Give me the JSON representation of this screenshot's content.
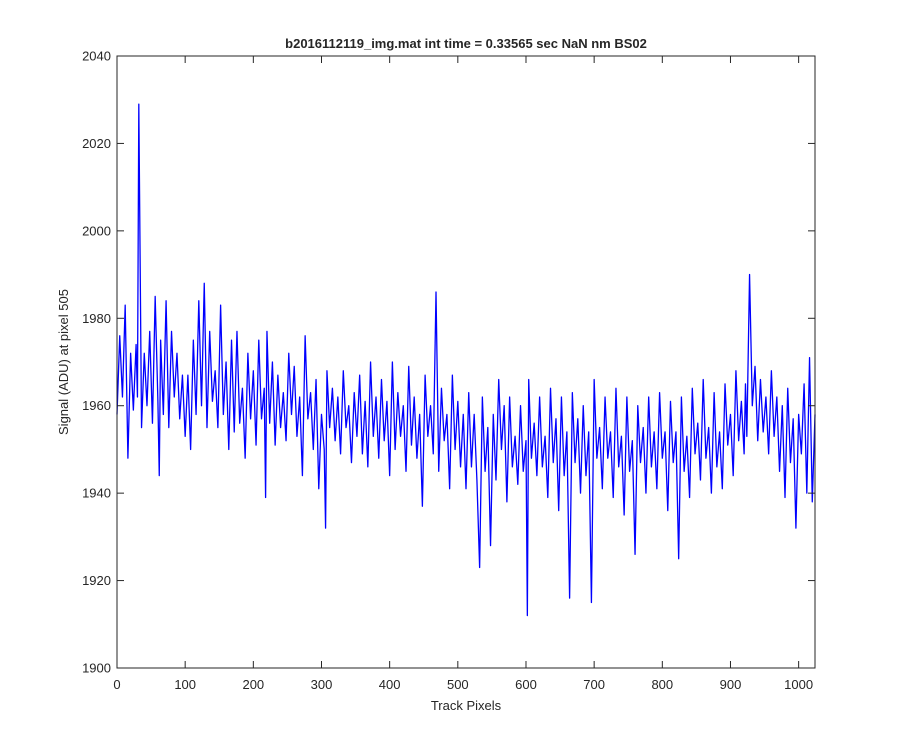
{
  "chart_data": {
    "type": "line",
    "title": "b2016112119_img.mat int time = 0.33565 sec  NaN nm BS02",
    "xlabel": "Track Pixels",
    "ylabel": "Signal (ADU) at pixel 505",
    "xlim": [
      0,
      1024
    ],
    "ylim": [
      1900,
      2040
    ],
    "xticks": [
      "0",
      "100",
      "200",
      "300",
      "400",
      "500",
      "600",
      "700",
      "800",
      "900",
      "1000"
    ],
    "yticks": [
      "1900",
      "1920",
      "1940",
      "1960",
      "1980",
      "2000",
      "2020",
      "2040"
    ],
    "grid": false,
    "legend": "none",
    "line_color": "#0000ff",
    "series": [
      {
        "x": [
          0,
          4,
          8,
          12,
          16,
          20,
          24,
          28,
          30,
          32,
          36,
          40,
          44,
          48,
          52,
          56,
          60,
          62,
          64,
          68,
          72,
          76,
          80,
          84,
          88,
          92,
          96,
          100,
          104,
          108,
          112,
          116,
          120,
          124,
          128,
          132,
          136,
          140,
          144,
          148,
          152,
          156,
          160,
          164,
          168,
          172,
          176,
          180,
          184,
          188,
          192,
          196,
          200,
          204,
          208,
          212,
          216,
          218,
          220,
          224,
          228,
          232,
          236,
          240,
          244,
          248,
          252,
          256,
          260,
          264,
          268,
          272,
          276,
          280,
          284,
          288,
          292,
          296,
          300,
          304,
          306,
          308,
          312,
          316,
          320,
          324,
          328,
          332,
          336,
          340,
          344,
          348,
          352,
          356,
          360,
          364,
          368,
          372,
          376,
          380,
          384,
          388,
          392,
          396,
          400,
          404,
          408,
          412,
          416,
          420,
          424,
          428,
          432,
          436,
          440,
          444,
          448,
          452,
          456,
          460,
          464,
          468,
          472,
          476,
          480,
          484,
          488,
          492,
          496,
          500,
          504,
          508,
          512,
          516,
          520,
          524,
          528,
          532,
          536,
          540,
          544,
          548,
          552,
          556,
          560,
          564,
          568,
          572,
          576,
          580,
          584,
          588,
          592,
          596,
          600,
          602,
          604,
          608,
          612,
          616,
          620,
          624,
          628,
          632,
          636,
          640,
          644,
          648,
          652,
          656,
          660,
          664,
          668,
          672,
          676,
          680,
          684,
          688,
          692,
          696,
          700,
          704,
          708,
          712,
          716,
          720,
          724,
          728,
          732,
          736,
          740,
          744,
          748,
          752,
          756,
          760,
          764,
          768,
          772,
          776,
          780,
          784,
          788,
          792,
          796,
          800,
          804,
          808,
          812,
          816,
          820,
          824,
          828,
          832,
          836,
          840,
          844,
          848,
          852,
          856,
          860,
          864,
          868,
          872,
          876,
          880,
          884,
          888,
          892,
          896,
          900,
          904,
          908,
          912,
          916,
          920,
          922,
          924,
          928,
          932,
          936,
          940,
          944,
          948,
          952,
          956,
          960,
          964,
          968,
          972,
          976,
          980,
          984,
          988,
          992,
          996,
          1000,
          1004,
          1008,
          1012,
          1016,
          1020,
          1024
        ],
        "y": [
          1958,
          1976,
          1962,
          1983,
          1948,
          1972,
          1959,
          1974,
          1962,
          2029,
          1955,
          1972,
          1960,
          1977,
          1956,
          1985,
          1961,
          1944,
          1975,
          1958,
          1984,
          1955,
          1977,
          1962,
          1972,
          1957,
          1967,
          1953,
          1967,
          1950,
          1975,
          1958,
          1984,
          1960,
          1988,
          1955,
          1977,
          1961,
          1968,
          1955,
          1983,
          1958,
          1970,
          1950,
          1975,
          1954,
          1977,
          1956,
          1964,
          1948,
          1972,
          1957,
          1968,
          1951,
          1975,
          1957,
          1964,
          1939,
          1977,
          1956,
          1970,
          1951,
          1967,
          1955,
          1963,
          1952,
          1972,
          1958,
          1969,
          1953,
          1962,
          1944,
          1976,
          1957,
          1963,
          1950,
          1966,
          1941,
          1958,
          1950,
          1932,
          1968,
          1955,
          1964,
          1952,
          1962,
          1949,
          1968,
          1955,
          1960,
          1947,
          1963,
          1953,
          1967,
          1949,
          1961,
          1946,
          1970,
          1953,
          1962,
          1948,
          1966,
          1952,
          1961,
          1944,
          1970,
          1950,
          1963,
          1953,
          1960,
          1945,
          1969,
          1951,
          1962,
          1948,
          1958,
          1937,
          1967,
          1953,
          1960,
          1949,
          1986,
          1945,
          1964,
          1952,
          1958,
          1941,
          1967,
          1950,
          1961,
          1946,
          1958,
          1941,
          1963,
          1946,
          1958,
          1943,
          1923,
          1962,
          1945,
          1955,
          1928,
          1958,
          1943,
          1966,
          1950,
          1960,
          1938,
          1962,
          1946,
          1953,
          1942,
          1960,
          1945,
          1952,
          1912,
          1966,
          1948,
          1956,
          1944,
          1962,
          1946,
          1953,
          1939,
          1964,
          1947,
          1957,
          1936,
          1962,
          1944,
          1954,
          1916,
          1963,
          1947,
          1957,
          1940,
          1960,
          1944,
          1954,
          1915,
          1966,
          1948,
          1955,
          1941,
          1962,
          1948,
          1954,
          1939,
          1964,
          1946,
          1953,
          1935,
          1962,
          1945,
          1952,
          1926,
          1960,
          1947,
          1955,
          1940,
          1962,
          1946,
          1954,
          1941,
          1963,
          1948,
          1954,
          1936,
          1961,
          1947,
          1954,
          1925,
          1962,
          1945,
          1953,
          1939,
          1964,
          1949,
          1956,
          1943,
          1966,
          1948,
          1955,
          1940,
          1963,
          1946,
          1954,
          1941,
          1965,
          1951,
          1958,
          1944,
          1968,
          1952,
          1961,
          1949,
          1965,
          1953,
          1990,
          1960,
          1969,
          1952,
          1966,
          1954,
          1962,
          1949,
          1968,
          1953,
          1962,
          1945,
          1960,
          1939,
          1964,
          1947,
          1957,
          1932,
          1958,
          1949,
          1965,
          1940,
          1971,
          1938,
          1958
        ]
      }
    ]
  }
}
